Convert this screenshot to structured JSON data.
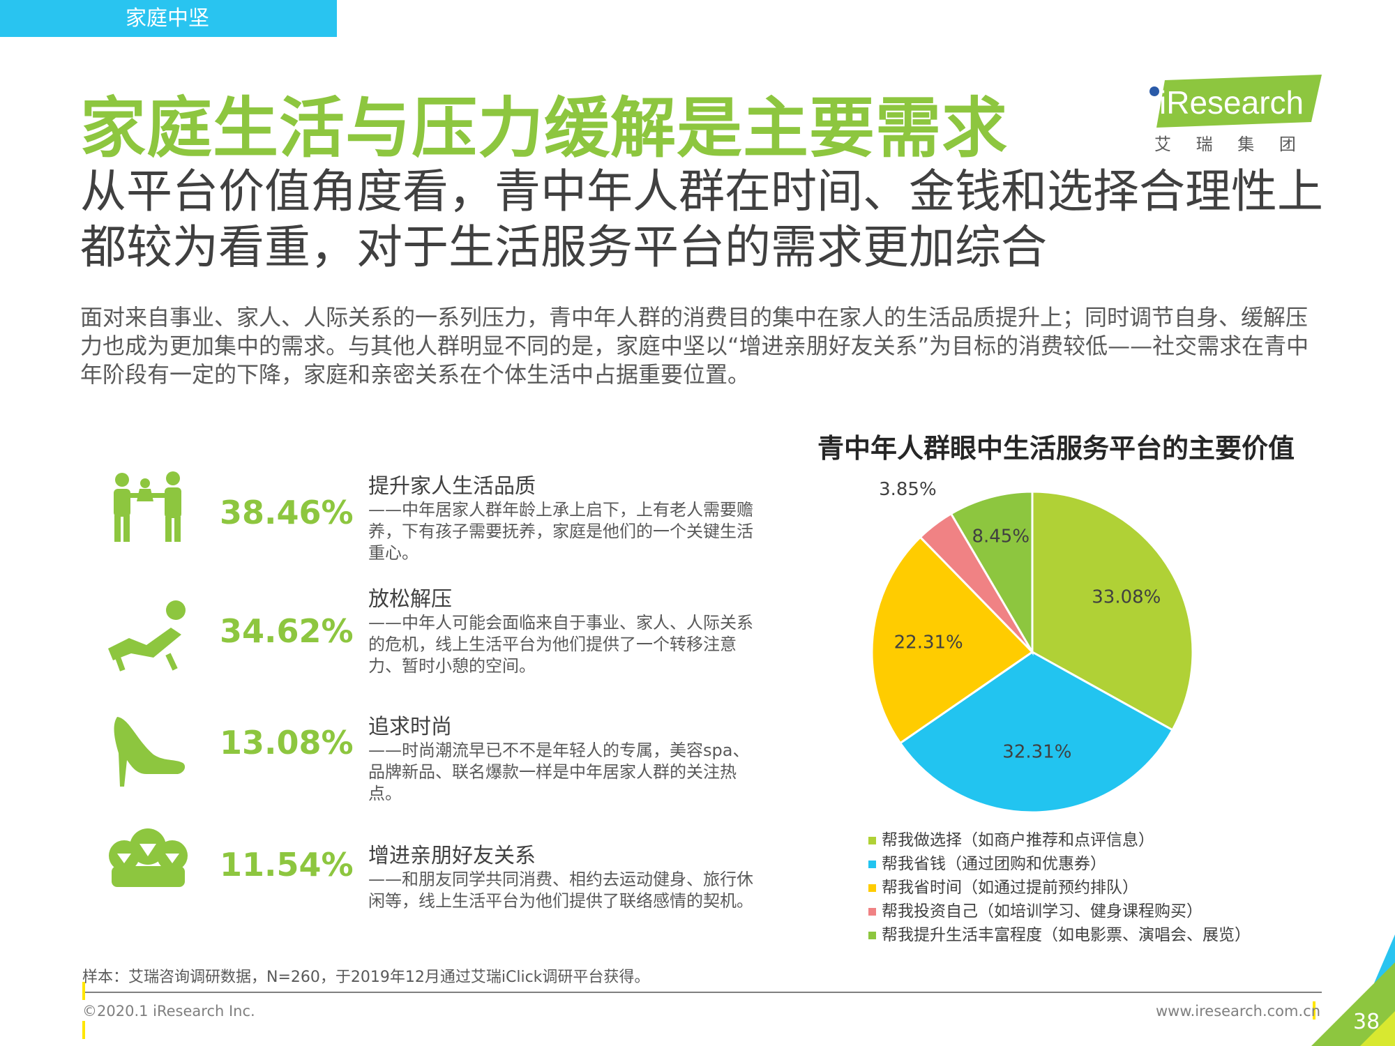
{
  "section_tag": "家庭中坚",
  "logo": {
    "brand": "iResearch",
    "subtitle": "艾 瑞 集 团"
  },
  "title": "家庭生活与压力缓解是主要需求",
  "subtitle": "从平台价值角度看，青中年人群在时间、金钱和选择合理性上都较为看重，对于生活服务平台的需求更加综合",
  "intro": "面对来自事业、家人、人际关系的一系列压力，青中年人群的消费目的集中在家人的生活品质提升上；同时调节自身、缓解压力也成为更加集中的需求。与其他人群明显不同的是，家庭中坚以“增进亲朋好友关系”为目标的消费较低——社交需求在青中年阶段有一定的下降，家庭和亲密关系在个体生活中占据重要位置。",
  "stats": [
    {
      "icon": "family-care-icon",
      "value": "38.46%",
      "heading": "提升家人生活品质",
      "desc": "——中年居家人群年龄上承上启下，上有老人需要赡养，下有孩子需要抚养，家庭是他们的一个关键生活重心。"
    },
    {
      "icon": "lounge-chair-icon",
      "value": "34.62%",
      "heading": "放松解压",
      "desc": "——中年人可能会面临来自于事业、家人、人际关系的危机，线上生活平台为他们提供了一个转移注意力、暂时小憩的空间。"
    },
    {
      "icon": "high-heel-icon",
      "value": "13.08%",
      "heading": "追求时尚",
      "desc": "——时尚潮流早已不不是年轻人的专属，美容spa、品牌新品、联名爆款一样是中年居家人群的关注热点。"
    },
    {
      "icon": "friends-icon",
      "value": "11.54%",
      "heading": "增进亲朋好友关系",
      "desc": "——和朋友同学共同消费、相约去运动健身、旅行休闲等，线上生活平台为他们提供了联络感情的契机。"
    }
  ],
  "chart_data": {
    "type": "pie",
    "title": "青中年人群眼中生活服务平台的主要价值",
    "unit": "%",
    "series": [
      {
        "name": "帮我做选择（如商户推荐和点评信息）",
        "value": 33.08,
        "label": "33.08%",
        "color": "#b0d136"
      },
      {
        "name": "帮我省钱（通过团购和优惠券）",
        "value": 32.31,
        "label": "32.31%",
        "color": "#22c4f0"
      },
      {
        "name": "帮我省时间（如通过提前预约排队）",
        "value": 22.31,
        "label": "22.31%",
        "color": "#ffcc00"
      },
      {
        "name": "帮我投资自己（如培训学习、健身课程购买）",
        "value": 3.85,
        "label": "3.85%",
        "color": "#f08284"
      },
      {
        "name": "帮我提升生活丰富程度（如电影票、演唱会、展览）",
        "value": 8.45,
        "label": "8.45%",
        "color": "#8dc63f"
      }
    ],
    "legend_position": "bottom"
  },
  "source": "样本：艾瑞咨询调研数据，N=260，于2019年12月通过艾瑞iClick调研平台获得。",
  "copyright": "©2020.1 iResearch Inc.",
  "website": "www.iresearch.com.cn",
  "page_number": "38",
  "colors": {
    "brand_green": "#8dc63f",
    "accent_blue": "#29c4f0",
    "accent_yellow": "#ffe600"
  }
}
